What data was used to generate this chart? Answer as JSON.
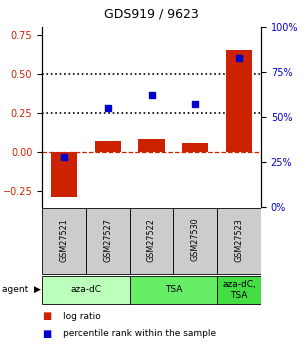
{
  "title": "GDS919 / 9623",
  "samples": [
    "GSM27521",
    "GSM27527",
    "GSM27522",
    "GSM27530",
    "GSM27523"
  ],
  "log_ratios": [
    -0.285,
    0.072,
    0.082,
    0.06,
    0.65
  ],
  "percentile_ranks": [
    28,
    55,
    62,
    57,
    83
  ],
  "left_ylim": [
    -0.35,
    0.8
  ],
  "right_ylim": [
    0,
    100
  ],
  "left_yticks": [
    -0.25,
    0.0,
    0.25,
    0.5,
    0.75
  ],
  "right_yticks": [
    0,
    25,
    50,
    75,
    100
  ],
  "right_yticklabels": [
    "0%",
    "25%",
    "50%",
    "75%",
    "100%"
  ],
  "bar_color": "#cc2200",
  "dot_color": "#0000cc",
  "dashed_line_color": "#cc2200",
  "dotted_line_color": "#000000",
  "group_boundaries": [
    {
      "start": 0,
      "end": 1,
      "label": "aza-dC",
      "color": "#bbffbb"
    },
    {
      "start": 2,
      "end": 3,
      "label": "TSA",
      "color": "#66ee66"
    },
    {
      "start": 4,
      "end": 4,
      "label": "aza-dC,\nTSA",
      "color": "#44dd44"
    }
  ],
  "legend_red_label": "log ratio",
  "legend_blue_label": "percentile rank within the sample",
  "bar_width": 0.6,
  "sample_box_color": "#cccccc",
  "bar_color_hex": "#cc2200",
  "dot_color_hex": "#0000cc"
}
